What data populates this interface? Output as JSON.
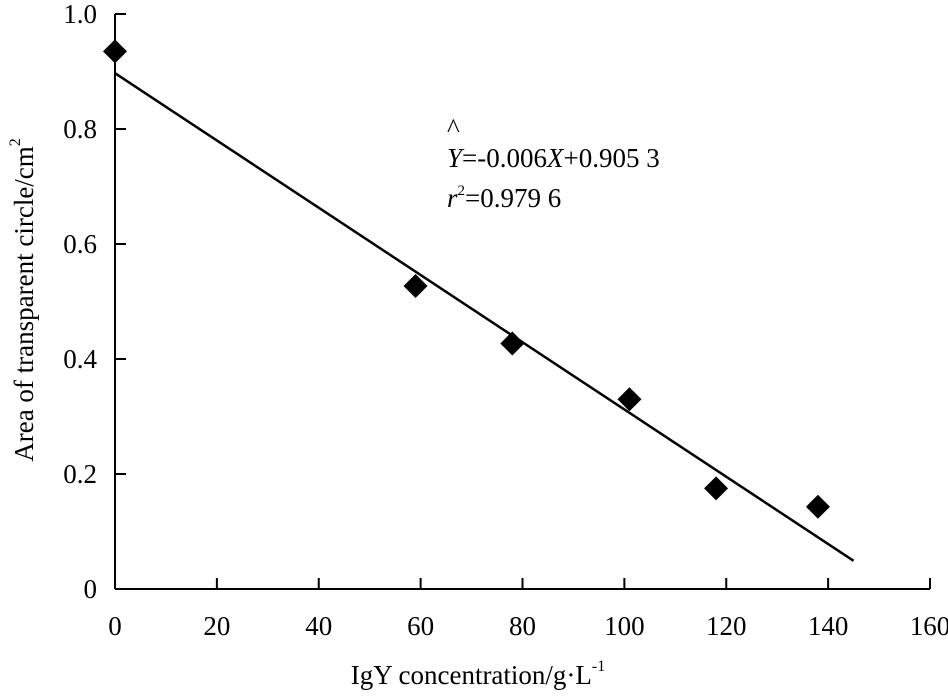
{
  "chart_data": {
    "type": "scatter",
    "title": "",
    "xlabel": "IgY concentration/g·L",
    "xlabel_sup": "-1",
    "ylabel": "Area of transparent circle/cm",
    "ylabel_sup": "2",
    "xlim": [
      0,
      160
    ],
    "ylim": [
      0,
      1.0
    ],
    "x_ticks": [
      0,
      20,
      40,
      60,
      80,
      100,
      120,
      140,
      160
    ],
    "y_ticks": [
      0,
      0.2,
      0.4,
      0.6,
      0.8,
      1.0
    ],
    "x_tick_labels": [
      "0",
      "20",
      "40",
      "60",
      "80",
      "100",
      "120",
      "140",
      "160"
    ],
    "y_tick_labels": [
      "0",
      "0.2",
      "0.4",
      "0.6",
      "0.8",
      "1.0"
    ],
    "grid": false,
    "legend": "none",
    "marker": "diamond",
    "marker_color": "#000000",
    "series": [
      {
        "x": [
          0,
          59,
          78,
          101,
          118,
          138
        ],
        "y": [
          0.935,
          0.527,
          0.427,
          0.33,
          0.175,
          0.143
        ]
      }
    ],
    "fit_line": {
      "x": [
        0,
        145
      ],
      "y": [
        0.897,
        0.049
      ],
      "color": "#000000"
    },
    "annotation": {
      "equation_y": "Y",
      "equation_hat": "^",
      "equation_mid": "=-0.006",
      "equation_x": "X",
      "equation_rest": "+0.905 3",
      "r_symbol": "r",
      "r_sup": "2",
      "r_value": "=0.979 6"
    }
  }
}
